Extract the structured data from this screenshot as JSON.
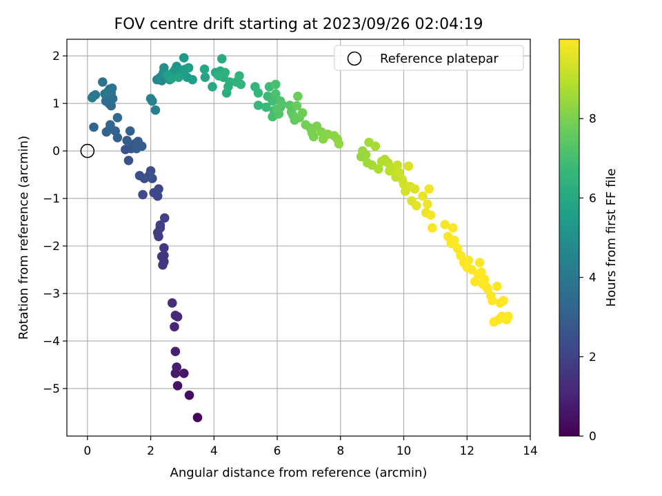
{
  "chart_data": {
    "type": "scatter",
    "title": "FOV centre drift starting at 2023/09/26 02:04:19",
    "xlabel": "Angular distance from reference (arcmin)",
    "ylabel": "Rotation from reference (arcmin)",
    "xlim": [
      -0.65,
      14.0
    ],
    "ylim": [
      -6.0,
      2.35
    ],
    "xticks": [
      0,
      2,
      4,
      6,
      8,
      10,
      12,
      14
    ],
    "yticks": [
      -5,
      -4,
      -3,
      -2,
      -1,
      0,
      1,
      2
    ],
    "grid": true,
    "legend": {
      "position": "top-right",
      "entries": [
        "Reference platepar"
      ]
    },
    "reference_point": {
      "x": 0,
      "y": 0,
      "label": "Reference platepar"
    },
    "colorbar": {
      "label": "Hours from first FF file",
      "range": [
        0,
        10
      ],
      "ticks": [
        0,
        2,
        4,
        6,
        8
      ],
      "colormap": "viridis"
    },
    "points": [
      [
        3.48,
        -5.61,
        0.15
      ],
      [
        3.22,
        -5.14,
        0.35
      ],
      [
        2.85,
        -4.94,
        0.5
      ],
      [
        3.05,
        -4.68,
        0.6
      ],
      [
        2.78,
        -4.68,
        0.7
      ],
      [
        2.82,
        -4.55,
        0.8
      ],
      [
        2.78,
        -4.22,
        0.9
      ],
      [
        2.75,
        -3.7,
        1.05
      ],
      [
        2.85,
        -3.49,
        1.15
      ],
      [
        2.78,
        -3.46,
        1.2
      ],
      [
        2.68,
        -3.2,
        1.3
      ],
      [
        2.38,
        -2.4,
        1.5
      ],
      [
        2.42,
        -2.33,
        1.55
      ],
      [
        2.35,
        -2.22,
        1.6
      ],
      [
        2.42,
        -2.2,
        1.65
      ],
      [
        2.42,
        -2.04,
        1.7
      ],
      [
        2.25,
        -1.8,
        1.8
      ],
      [
        2.22,
        -1.72,
        1.85
      ],
      [
        2.3,
        -1.62,
        1.9
      ],
      [
        2.3,
        -1.56,
        1.95
      ],
      [
        2.44,
        -1.41,
        2.0
      ],
      [
        2.22,
        -0.95,
        2.1
      ],
      [
        2.25,
        -0.8,
        2.15
      ],
      [
        2.1,
        -0.88,
        2.2
      ],
      [
        1.75,
        -0.92,
        2.25
      ],
      [
        2.05,
        -0.58,
        2.3
      ],
      [
        2.0,
        -0.42,
        2.35
      ],
      [
        1.8,
        -0.58,
        2.4
      ],
      [
        1.65,
        -0.52,
        2.45
      ],
      [
        1.95,
        -0.52,
        2.5
      ],
      [
        1.3,
        -0.2,
        2.6
      ],
      [
        1.2,
        0.03,
        2.65
      ],
      [
        1.38,
        0.05,
        2.7
      ],
      [
        1.5,
        0.15,
        2.75
      ],
      [
        1.6,
        0.2,
        2.8
      ],
      [
        1.72,
        0.1,
        2.85
      ],
      [
        1.55,
        0.05,
        2.9
      ],
      [
        1.25,
        0.22,
        2.95
      ],
      [
        0.95,
        0.28,
        3.0
      ],
      [
        1.35,
        0.42,
        3.05
      ],
      [
        0.88,
        0.42,
        3.1
      ],
      [
        0.7,
        0.46,
        3.15
      ],
      [
        0.6,
        0.4,
        3.2
      ],
      [
        0.72,
        0.55,
        3.25
      ],
      [
        0.2,
        0.5,
        3.3
      ],
      [
        0.95,
        0.7,
        3.35
      ],
      [
        0.75,
        0.95,
        3.45
      ],
      [
        0.58,
        1.05,
        3.5
      ],
      [
        0.68,
        1.0,
        3.55
      ],
      [
        0.8,
        1.1,
        3.6
      ],
      [
        0.6,
        1.15,
        3.65
      ],
      [
        0.75,
        1.22,
        3.7
      ],
      [
        0.7,
        1.3,
        3.75
      ],
      [
        0.78,
        1.32,
        3.8
      ],
      [
        0.48,
        1.45,
        3.85
      ],
      [
        0.65,
        1.25,
        3.9
      ],
      [
        0.55,
        1.2,
        3.95
      ],
      [
        0.18,
        1.15,
        4.0
      ],
      [
        0.25,
        1.18,
        4.05
      ],
      [
        0.15,
        1.12,
        4.1
      ],
      [
        2.15,
        0.86,
        4.3
      ],
      [
        2.05,
        1.05,
        4.35
      ],
      [
        2.0,
        1.1,
        4.4
      ],
      [
        2.2,
        1.5,
        4.6
      ],
      [
        2.35,
        1.48,
        4.7
      ],
      [
        2.3,
        1.55,
        4.8
      ],
      [
        2.4,
        1.65,
        4.9
      ],
      [
        2.42,
        1.75,
        5.0
      ],
      [
        2.5,
        1.6,
        5.05
      ],
      [
        2.6,
        1.5,
        5.1
      ],
      [
        2.7,
        1.55,
        5.15
      ],
      [
        2.78,
        1.72,
        5.2
      ],
      [
        2.82,
        1.78,
        5.25
      ],
      [
        2.7,
        1.65,
        5.3
      ],
      [
        2.9,
        1.6,
        5.35
      ],
      [
        3.0,
        1.7,
        5.4
      ],
      [
        3.05,
        1.96,
        5.45
      ],
      [
        3.15,
        1.55,
        5.5
      ],
      [
        3.2,
        1.75,
        5.55
      ],
      [
        3.32,
        1.5,
        5.6
      ],
      [
        3.1,
        1.72,
        5.65
      ],
      [
        2.55,
        1.6,
        5.7
      ],
      [
        2.65,
        1.52,
        5.75
      ],
      [
        2.88,
        1.55,
        5.8
      ],
      [
        3.72,
        1.55,
        5.85
      ],
      [
        3.7,
        1.72,
        5.9
      ],
      [
        3.95,
        1.35,
        5.95
      ],
      [
        4.05,
        1.65,
        6.0
      ],
      [
        4.2,
        1.68,
        6.05
      ],
      [
        4.25,
        1.94,
        6.1
      ],
      [
        4.3,
        1.55,
        6.15
      ],
      [
        4.4,
        1.22,
        6.2
      ],
      [
        4.45,
        1.35,
        6.25
      ],
      [
        4.5,
        1.45,
        6.3
      ],
      [
        4.15,
        1.58,
        6.35
      ],
      [
        4.35,
        1.65,
        6.4
      ],
      [
        4.7,
        1.45,
        6.45
      ],
      [
        4.8,
        1.58,
        6.5
      ],
      [
        4.85,
        1.4,
        6.55
      ],
      [
        5.3,
        1.35,
        6.6
      ],
      [
        5.4,
        1.22,
        6.65
      ],
      [
        5.4,
        0.96,
        6.7
      ],
      [
        5.65,
        0.92,
        6.75
      ],
      [
        5.7,
        1.15,
        6.8
      ],
      [
        5.75,
        1.35,
        6.85
      ],
      [
        5.85,
        1.05,
        6.9
      ],
      [
        5.9,
        0.85,
        6.95
      ],
      [
        5.85,
        0.72,
        7.0
      ],
      [
        5.95,
        1.4,
        7.05
      ],
      [
        5.95,
        1.2,
        7.1
      ],
      [
        6.1,
        1.05,
        7.15
      ],
      [
        6.1,
        0.92,
        7.2
      ],
      [
        6.05,
        0.78,
        7.25
      ],
      [
        6.15,
        0.98,
        7.3
      ],
      [
        6.0,
        0.88,
        7.35
      ],
      [
        6.4,
        0.96,
        7.4
      ],
      [
        6.45,
        0.82,
        7.45
      ],
      [
        6.5,
        0.75,
        7.5
      ],
      [
        6.55,
        0.65,
        7.55
      ],
      [
        6.6,
        0.7,
        7.6
      ],
      [
        6.7,
        0.7,
        7.65
      ],
      [
        6.62,
        0.95,
        7.7
      ],
      [
        6.65,
        1.15,
        7.75
      ],
      [
        6.8,
        0.8,
        7.8
      ],
      [
        6.9,
        0.55,
        7.85
      ],
      [
        7.05,
        0.48,
        7.9
      ],
      [
        7.1,
        0.38,
        7.95
      ],
      [
        7.15,
        0.3,
        8.0
      ],
      [
        7.25,
        0.52,
        8.05
      ],
      [
        7.4,
        0.4,
        8.1
      ],
      [
        7.45,
        0.25,
        8.15
      ],
      [
        7.6,
        0.35,
        8.2
      ],
      [
        7.8,
        0.32,
        8.25
      ],
      [
        7.9,
        0.25,
        8.3
      ],
      [
        7.95,
        0.15,
        8.35
      ],
      [
        8.65,
        -0.12,
        8.4
      ],
      [
        8.7,
        0.0,
        8.45
      ],
      [
        8.8,
        -0.08,
        8.5
      ],
      [
        8.85,
        -0.25,
        8.55
      ],
      [
        8.9,
        0.18,
        8.6
      ],
      [
        9.0,
        -0.3,
        8.65
      ],
      [
        9.1,
        0.1,
        8.7
      ],
      [
        9.2,
        -0.38,
        8.75
      ],
      [
        9.3,
        -0.22,
        8.8
      ],
      [
        9.4,
        -0.18,
        8.85
      ],
      [
        9.5,
        -0.25,
        8.9
      ],
      [
        9.55,
        -0.42,
        8.95
      ],
      [
        9.6,
        -0.35,
        9.0
      ],
      [
        9.7,
        -0.4,
        9.05
      ],
      [
        9.75,
        -0.55,
        9.1
      ],
      [
        9.8,
        -0.3,
        9.15
      ],
      [
        9.85,
        -0.45,
        9.2
      ],
      [
        9.95,
        -0.6,
        9.25
      ],
      [
        10.0,
        -0.7,
        9.3
      ],
      [
        10.05,
        -0.85,
        9.35
      ],
      [
        10.2,
        -0.75,
        9.4
      ],
      [
        10.15,
        -0.32,
        9.45
      ],
      [
        10.25,
        -1.05,
        9.5
      ],
      [
        10.35,
        -0.8,
        9.55
      ],
      [
        10.4,
        -1.15,
        9.6
      ],
      [
        10.6,
        -0.95,
        9.65
      ],
      [
        10.7,
        -1.3,
        9.7
      ],
      [
        10.75,
        -1.12,
        9.75
      ],
      [
        10.8,
        -0.8,
        9.8
      ],
      [
        10.85,
        -1.35,
        9.85
      ],
      [
        10.9,
        -1.62,
        9.9
      ],
      [
        11.3,
        -1.55,
        9.92
      ],
      [
        11.4,
        -1.8,
        9.94
      ],
      [
        11.5,
        -1.95,
        9.95
      ],
      [
        11.55,
        -1.62,
        9.96
      ],
      [
        11.6,
        -1.88,
        9.97
      ],
      [
        11.7,
        -2.05,
        9.98
      ],
      [
        11.8,
        -2.2,
        9.99
      ],
      [
        11.9,
        -2.35,
        10.0
      ],
      [
        12.0,
        -2.45,
        10.0
      ],
      [
        12.05,
        -2.3,
        10.0
      ],
      [
        12.15,
        -2.5,
        10.0
      ],
      [
        12.25,
        -2.75,
        10.0
      ],
      [
        12.35,
        -2.6,
        10.0
      ],
      [
        12.4,
        -2.35,
        10.0
      ],
      [
        12.45,
        -2.55,
        10.0
      ],
      [
        12.5,
        -2.8,
        10.0
      ],
      [
        12.55,
        -2.7,
        10.0
      ],
      [
        12.6,
        -2.85,
        10.0
      ],
      [
        12.65,
        -2.9,
        10.0
      ],
      [
        12.75,
        -3.05,
        10.0
      ],
      [
        12.8,
        -3.15,
        10.0
      ],
      [
        12.85,
        -3.6,
        10.0
      ],
      [
        12.95,
        -2.85,
        10.0
      ],
      [
        13.0,
        -3.55,
        10.0
      ],
      [
        13.05,
        -3.2,
        10.0
      ],
      [
        13.1,
        -3.48,
        10.0
      ],
      [
        13.15,
        -3.15,
        10.0
      ],
      [
        13.25,
        -3.55,
        10.0
      ],
      [
        13.3,
        -3.48,
        10.0
      ]
    ]
  }
}
